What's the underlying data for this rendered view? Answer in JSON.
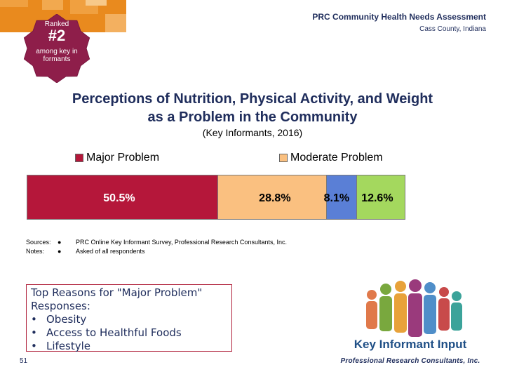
{
  "header": {
    "title": "PRC Community Health Needs Assessment",
    "location": "Cass County, Indiana"
  },
  "badge": {
    "ranked": "Ranked",
    "rank": "#2",
    "sub": "among key informants"
  },
  "title": {
    "line1": "Perceptions of Nutrition, Physical Activity, and Weight",
    "line2": "as a Problem in the Community",
    "subtitle": "(Key Informants, 2016)"
  },
  "legend": {
    "major": "Major Problem",
    "moderate": "Moderate Problem"
  },
  "colors": {
    "major": "#b5173a",
    "moderate": "#fac080",
    "minor": "#5a7fd6",
    "none": "#a4d85e",
    "accent": "#1f2d5c"
  },
  "chart_data": {
    "type": "bar",
    "orientation": "horizontal-stacked",
    "title": "Perceptions of Nutrition, Physical Activity, and Weight as a Problem in the Community",
    "subtitle": "(Key Informants, 2016)",
    "series": [
      {
        "name": "Major Problem",
        "value": 50.5,
        "label": "50.5%"
      },
      {
        "name": "Moderate Problem",
        "value": 28.8,
        "label": "28.8%"
      },
      {
        "name": "",
        "value": 8.1,
        "label": "8.1%"
      },
      {
        "name": "",
        "value": 12.6,
        "label": "12.6%"
      }
    ],
    "legend_position": "top"
  },
  "notes": {
    "sources_key": "Sources:",
    "sources_text": "PRC Online Key Informant Survey, Professional Research Consultants, Inc.",
    "notes_key": "Notes:",
    "notes_text": "Asked of all respondents",
    "bullet": "●"
  },
  "reasons": {
    "heading1": "Top Reasons for \"Major Problem\"",
    "heading2": "Responses:",
    "bullet": "•",
    "items": [
      "Obesity",
      "Access to Healthful Foods",
      "Lifestyle"
    ]
  },
  "footer": {
    "page": "51",
    "kii": "Key Informant Input",
    "logo": "Professional Research Consultants, Inc."
  }
}
